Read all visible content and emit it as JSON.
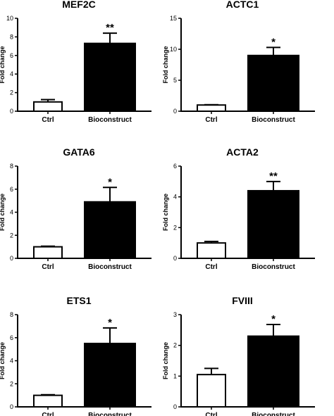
{
  "chart_data": [
    {
      "type": "bar",
      "title": "MEF2C",
      "ylabel": "Fold change",
      "categories": [
        "Ctrl",
        "Bioconstruct"
      ],
      "values": [
        1.0,
        7.3
      ],
      "errors": [
        0.25,
        1.1
      ],
      "significance": [
        "",
        "**"
      ],
      "ylim": [
        0,
        10
      ],
      "yticks": [
        0,
        2,
        4,
        6,
        8,
        10
      ],
      "fills": [
        "#ffffff",
        "#000000"
      ]
    },
    {
      "type": "bar",
      "title": "ACTC1",
      "ylabel": "Fold change",
      "categories": [
        "Ctrl",
        "Bioconstruct"
      ],
      "values": [
        1.0,
        9.0
      ],
      "errors": [
        0.05,
        1.3
      ],
      "significance": [
        "",
        "*"
      ],
      "ylim": [
        0,
        15
      ],
      "yticks": [
        0,
        5,
        10,
        15
      ],
      "fills": [
        "#ffffff",
        "#000000"
      ]
    },
    {
      "type": "bar",
      "title": "GATA6",
      "ylabel": "Fold change",
      "categories": [
        "Ctrl",
        "Bioconstruct"
      ],
      "values": [
        1.0,
        4.9
      ],
      "errors": [
        0.05,
        1.25
      ],
      "significance": [
        "",
        "*"
      ],
      "ylim": [
        0,
        8
      ],
      "yticks": [
        0,
        2,
        4,
        6,
        8
      ],
      "fills": [
        "#ffffff",
        "#000000"
      ]
    },
    {
      "type": "bar",
      "title": "ACTA2",
      "ylabel": "Fold change",
      "categories": [
        "Ctrl",
        "Bioconstruct"
      ],
      "values": [
        1.0,
        4.4
      ],
      "errors": [
        0.1,
        0.6
      ],
      "significance": [
        "",
        "**"
      ],
      "ylim": [
        0,
        6
      ],
      "yticks": [
        0,
        2,
        4,
        6
      ],
      "fills": [
        "#ffffff",
        "#000000"
      ]
    },
    {
      "type": "bar",
      "title": "ETS1",
      "ylabel": "Fold change",
      "categories": [
        "Ctrl",
        "Bioconstruct"
      ],
      "values": [
        1.0,
        5.5
      ],
      "errors": [
        0.05,
        1.35
      ],
      "significance": [
        "",
        "*"
      ],
      "ylim": [
        0,
        8
      ],
      "yticks": [
        0,
        2,
        4,
        6,
        8
      ],
      "fills": [
        "#ffffff",
        "#000000"
      ]
    },
    {
      "type": "bar",
      "title": "FVIII",
      "ylabel": "Fold change",
      "categories": [
        "Ctrl",
        "Bioconstruct"
      ],
      "values": [
        1.05,
        2.3
      ],
      "errors": [
        0.2,
        0.38
      ],
      "significance": [
        "",
        "*"
      ],
      "ylim": [
        0,
        3
      ],
      "yticks": [
        0,
        1,
        2,
        3
      ],
      "fills": [
        "#ffffff",
        "#000000"
      ]
    }
  ]
}
